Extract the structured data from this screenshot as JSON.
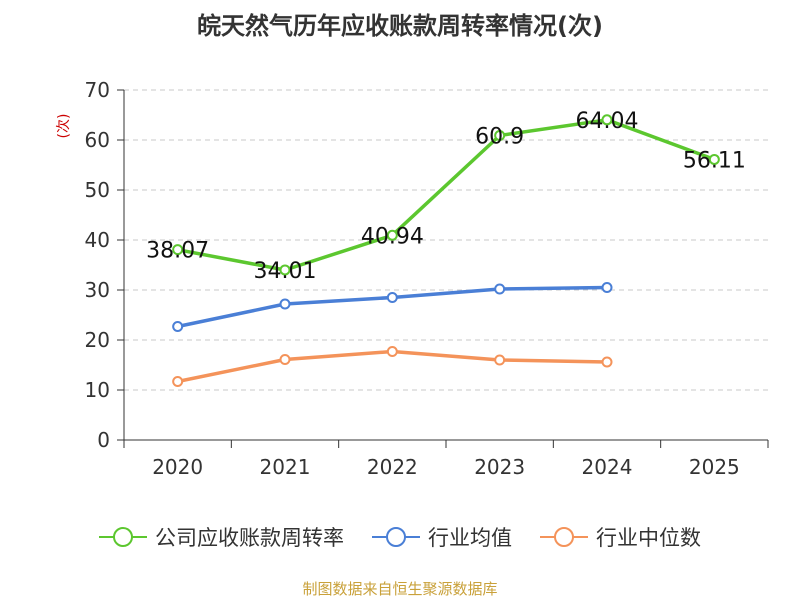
{
  "title": "皖天然气历年应收账款周转率情况(次)",
  "source": "制图数据来自恒生聚源数据库",
  "chart_data": {
    "type": "line",
    "title": "皖天然气历年应收账款周转率情况(次)",
    "ylabel": "(次)",
    "xlabel": "",
    "ylim": [
      0,
      70
    ],
    "yticks": [
      0,
      10,
      20,
      30,
      40,
      50,
      60,
      70
    ],
    "categories": [
      "2020",
      "2021",
      "2022",
      "2023",
      "2024",
      "2025"
    ],
    "grid": true,
    "legend_position": "bottom",
    "series": [
      {
        "name": "公司应收账款周转率",
        "color": "#5cc72f",
        "values": [
          38.07,
          34.01,
          40.94,
          60.9,
          64.04,
          56.11
        ],
        "labels": [
          "38.07",
          "34.01",
          "40.94",
          "60.9",
          "64.04",
          "56.11"
        ],
        "show_labels": true
      },
      {
        "name": "行业均值",
        "color": "#4a7fd6",
        "values": [
          22.7,
          27.2,
          28.5,
          30.2,
          30.5,
          null
        ],
        "show_labels": false
      },
      {
        "name": "行业中位数",
        "color": "#f4935a",
        "values": [
          11.7,
          16.1,
          17.7,
          16.0,
          15.6,
          null
        ],
        "show_labels": false
      }
    ]
  }
}
